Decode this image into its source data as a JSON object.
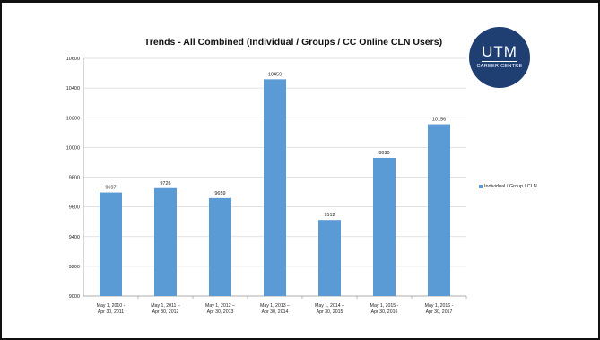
{
  "title": "Trends - All Combined (Individual / Groups / CC Online CLN Users)",
  "logo": {
    "name": "UTM",
    "subtitle": "CAREER CENTRE"
  },
  "chart_data": {
    "type": "bar",
    "title": "Trends - All Combined (Individual / Groups / CC Online CLN Users)",
    "categories": [
      [
        "May 1, 2010 -",
        "Apr 30, 2011"
      ],
      [
        "May 1, 2011 –",
        "Apr 30, 2012"
      ],
      [
        "May 1, 2012 –",
        "Apr 30, 2013"
      ],
      [
        "May 1, 2013 –",
        "Apr 30, 2014"
      ],
      [
        "May 1, 2014 –",
        "Apr 30, 2015"
      ],
      [
        "May 1, 2015 -",
        "Apr 30, 2016"
      ],
      [
        "May 1, 2016 -",
        "Apr 30, 2017"
      ]
    ],
    "series": [
      {
        "name": "Individual / Group / CLN",
        "values": [
          9697,
          9726,
          9659,
          10459,
          9512,
          9930,
          10156
        ]
      }
    ],
    "ylim": [
      9000,
      10600
    ],
    "yticks": [
      9000,
      9200,
      9400,
      9600,
      9800,
      10000,
      10200,
      10400,
      10600
    ],
    "grid": true,
    "legend_position": "right",
    "colors": {
      "bar": "#5b9bd5",
      "grid": "#d9d9d9"
    }
  }
}
